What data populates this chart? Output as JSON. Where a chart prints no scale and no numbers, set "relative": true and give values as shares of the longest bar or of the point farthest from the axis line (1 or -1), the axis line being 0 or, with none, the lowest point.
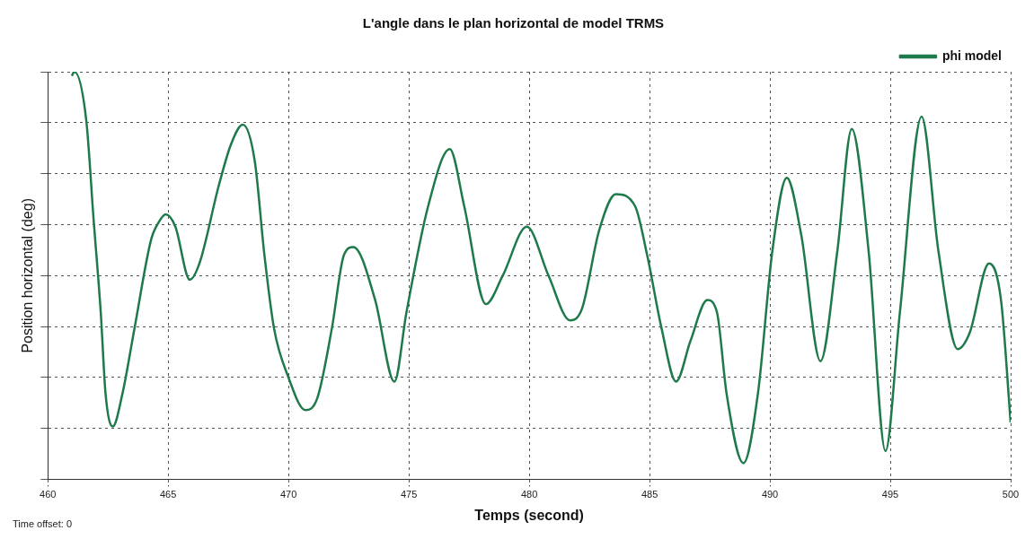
{
  "chart_data": {
    "type": "line",
    "title": "L'angle dans le plan horizontal de model TRMS",
    "xlabel": "Temps (second)",
    "ylabel": "Position horizontal (deg)",
    "annotations": [
      "Time offset: 0"
    ],
    "relative": true,
    "xlim": [
      460,
      500
    ],
    "xticks": [
      460,
      465,
      470,
      475,
      480,
      485,
      490,
      495,
      500
    ],
    "grid": true,
    "legend": "top right",
    "line_style": "solid",
    "marker": "none",
    "series": [
      {
        "name": "phi model",
        "color": "#1e7a4a",
        "x": [
          461.0,
          461.1,
          461.6,
          461.9,
          462.2,
          462.4,
          462.7,
          463.1,
          463.6,
          464.3,
          464.6,
          464.9,
          465.3,
          465.9,
          466.3,
          467.1,
          467.6,
          468.1,
          468.6,
          469.0,
          469.4,
          470.0,
          470.7,
          471.2,
          471.8,
          472.3,
          472.7,
          473.6,
          474.4,
          474.9,
          475.8,
          476.7,
          477.3,
          478.2,
          478.9,
          479.9,
          480.8,
          481.7,
          482.2,
          482.9,
          483.6,
          484.4,
          484.9,
          485.5,
          486.1,
          486.7,
          487.4,
          487.8,
          488.2,
          488.9,
          489.5,
          490.1,
          490.7,
          491.3,
          492.1,
          492.8,
          493.4,
          494.1,
          494.8,
          495.4,
          496.3,
          497.0,
          497.8,
          498.3,
          499.1,
          499.6,
          500.0
        ],
        "values": [
          0.99,
          1.0,
          0.88,
          0.64,
          0.41,
          0.21,
          0.13,
          0.21,
          0.37,
          0.59,
          0.63,
          0.65,
          0.62,
          0.49,
          0.53,
          0.72,
          0.82,
          0.87,
          0.78,
          0.55,
          0.37,
          0.25,
          0.17,
          0.2,
          0.37,
          0.55,
          0.57,
          0.44,
          0.24,
          0.41,
          0.67,
          0.81,
          0.67,
          0.43,
          0.5,
          0.62,
          0.5,
          0.39,
          0.42,
          0.61,
          0.7,
          0.67,
          0.55,
          0.37,
          0.24,
          0.34,
          0.44,
          0.41,
          0.21,
          0.04,
          0.21,
          0.56,
          0.74,
          0.6,
          0.29,
          0.56,
          0.86,
          0.56,
          0.07,
          0.41,
          0.89,
          0.56,
          0.32,
          0.36,
          0.53,
          0.44,
          0.14
        ]
      }
    ]
  }
}
